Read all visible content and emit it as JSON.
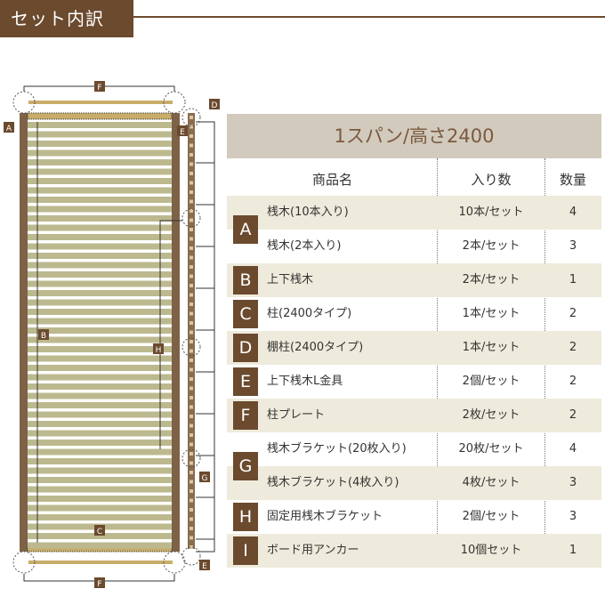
{
  "header": {
    "title": "セット内訳"
  },
  "diagram": {
    "labels": [
      "A",
      "B",
      "C",
      "D",
      "E",
      "F",
      "G",
      "H",
      "I"
    ]
  },
  "table": {
    "title": "1スパン/高さ2400",
    "columns": [
      "商品名",
      "入り数",
      "数量"
    ],
    "groups": [
      {
        "letter": "A",
        "rows": [
          {
            "name": "桟木(10本入り)",
            "count": "10本/セット",
            "qty": "4"
          },
          {
            "name": "桟木(2本入り)",
            "count": "2本/セット",
            "qty": "3"
          }
        ]
      },
      {
        "letter": "B",
        "rows": [
          {
            "name": "上下桟木",
            "count": "2本/セット",
            "qty": "1"
          }
        ]
      },
      {
        "letter": "C",
        "rows": [
          {
            "name": "柱(2400タイプ)",
            "count": "1本/セット",
            "qty": "2"
          }
        ]
      },
      {
        "letter": "D",
        "rows": [
          {
            "name": "棚柱(2400タイプ)",
            "count": "1本/セット",
            "qty": "2"
          }
        ]
      },
      {
        "letter": "E",
        "rows": [
          {
            "name": "上下桟木L金具",
            "count": "2個/セット",
            "qty": "2"
          }
        ]
      },
      {
        "letter": "F",
        "rows": [
          {
            "name": "柱プレート",
            "count": "2枚/セット",
            "qty": "2"
          }
        ]
      },
      {
        "letter": "G",
        "rows": [
          {
            "name": "桟木ブラケット(20枚入り)",
            "count": "20枚/セット",
            "qty": "4"
          },
          {
            "name": "桟木ブラケット(4枚入り)",
            "count": "4枚/セット",
            "qty": "3"
          }
        ]
      },
      {
        "letter": "H",
        "rows": [
          {
            "name": "固定用桟木ブラケット",
            "count": "2個/セット",
            "qty": "3"
          }
        ]
      },
      {
        "letter": "I",
        "rows": [
          {
            "name": "ボード用アンカー",
            "count": "10個セット",
            "qty": "1"
          }
        ]
      }
    ]
  },
  "colors": {
    "brown": "#6b4a2e",
    "stripe": "#efebdc",
    "titlebg": "#d2cabc",
    "slat": "#bdb98f"
  }
}
